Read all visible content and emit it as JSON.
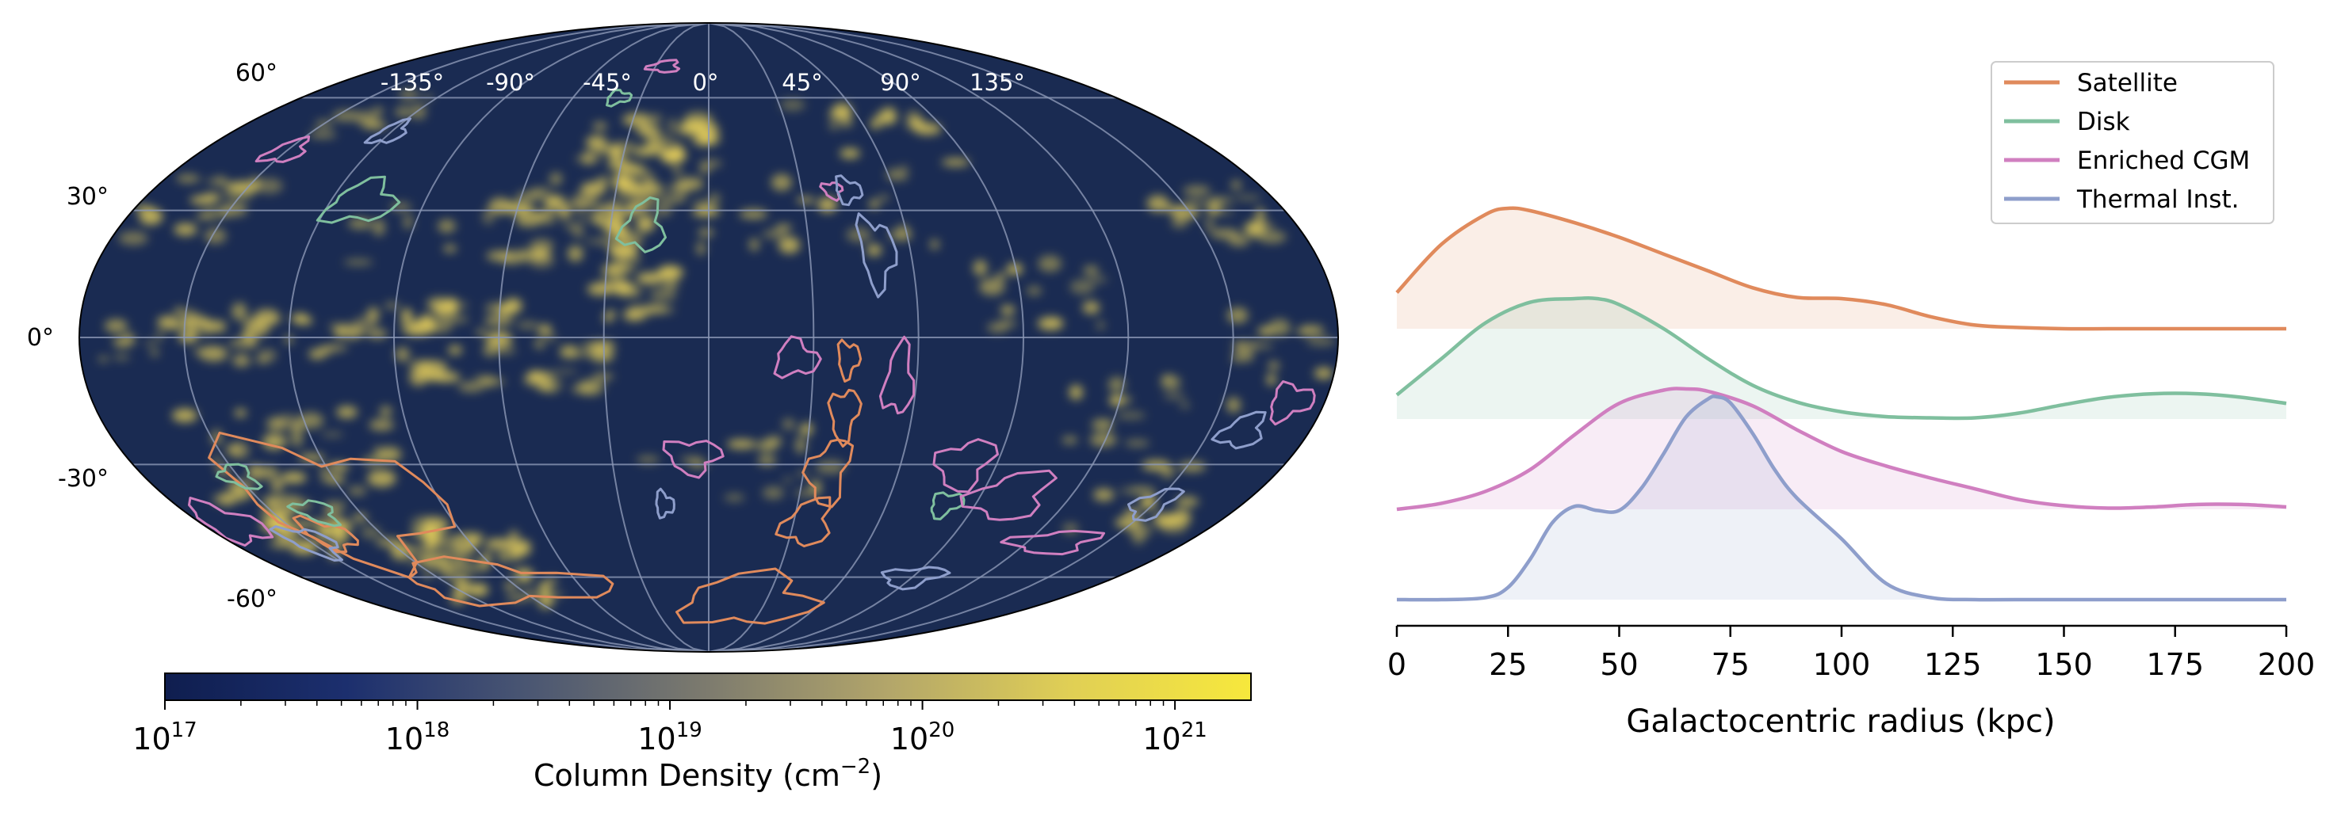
{
  "sky_map": {
    "lon_labels": [
      "-135°",
      "-90°",
      "-45°",
      "0°",
      "45°",
      "90°",
      "135°"
    ],
    "lat_labels": [
      "60°",
      "30°",
      "0°",
      "-30°",
      "-60°"
    ],
    "background_color": "#1a2b52",
    "grid_color": "#8c98b6",
    "emission_color": "#e6cf5a",
    "contour_colors": {
      "satellite": "#e08a5c",
      "disk": "#7fbf9e",
      "enriched_cgm": "#d07fc0",
      "thermal_inst": "#8e9ecb"
    }
  },
  "colorbar": {
    "label_text": "Column Density (cm",
    "label_exponent": "−2",
    "label_suffix": ")",
    "ticks": [
      {
        "base": "10",
        "exp": "17",
        "value": 1e+17
      },
      {
        "base": "10",
        "exp": "18",
        "value": 1e+18
      },
      {
        "base": "10",
        "exp": "19",
        "value": 1e+19
      },
      {
        "base": "10",
        "exp": "20",
        "value": 1e+20
      },
      {
        "base": "10",
        "exp": "21",
        "value": 1e+21
      }
    ],
    "range": [
      1e+17,
      2e+21
    ],
    "scale": "log",
    "colors": [
      "#0f1e4f",
      "#1c2f6e",
      "#4a5672",
      "#7d7b6e",
      "#b3a66a",
      "#e0cf55",
      "#f7e83c"
    ]
  },
  "chart_data": {
    "type": "area",
    "xlabel": "Galactocentric radius (kpc)",
    "ylabel": "",
    "xlim": [
      0,
      200
    ],
    "x_ticks": [
      0,
      25,
      50,
      75,
      100,
      125,
      150,
      175,
      200
    ],
    "grid": false,
    "legend_position": "top-right",
    "layout": "ridgeline",
    "series": [
      {
        "name": "Satellite",
        "color": "#e08a5c",
        "offset": 3,
        "scale": 0.95,
        "x": [
          0,
          10,
          20,
          25,
          30,
          40,
          50,
          60,
          70,
          80,
          90,
          100,
          110,
          120,
          130,
          140,
          150,
          160,
          170,
          180,
          190,
          200
        ],
        "y": [
          0.3,
          0.7,
          0.95,
          1.0,
          0.98,
          0.88,
          0.76,
          0.62,
          0.48,
          0.34,
          0.26,
          0.25,
          0.2,
          0.1,
          0.03,
          0.01,
          0,
          0,
          0,
          0,
          0,
          0
        ]
      },
      {
        "name": "Disk",
        "color": "#7fbf9e",
        "offset": 2,
        "scale": 0.95,
        "x": [
          0,
          10,
          20,
          30,
          40,
          45,
          50,
          60,
          70,
          80,
          90,
          100,
          110,
          120,
          130,
          140,
          150,
          160,
          170,
          180,
          190,
          200
        ],
        "y": [
          0.2,
          0.5,
          0.8,
          0.97,
          1.0,
          1.0,
          0.95,
          0.75,
          0.5,
          0.28,
          0.14,
          0.06,
          0.02,
          0.01,
          0.01,
          0.05,
          0.12,
          0.18,
          0.21,
          0.21,
          0.18,
          0.13
        ]
      },
      {
        "name": "Enriched CGM",
        "color": "#d07fc0",
        "offset": 1,
        "scale": 0.95,
        "x": [
          0,
          10,
          20,
          30,
          40,
          50,
          60,
          65,
          70,
          80,
          90,
          100,
          110,
          120,
          130,
          140,
          150,
          160,
          170,
          180,
          190,
          200
        ],
        "y": [
          0,
          0.05,
          0.15,
          0.33,
          0.62,
          0.88,
          0.99,
          1.0,
          0.98,
          0.86,
          0.66,
          0.48,
          0.36,
          0.26,
          0.17,
          0.08,
          0.03,
          0.01,
          0.02,
          0.04,
          0.04,
          0.02
        ]
      },
      {
        "name": "Thermal Inst.",
        "color": "#8e9ecb",
        "offset": 0,
        "scale": 1.6,
        "x": [
          0,
          10,
          20,
          25,
          30,
          35,
          40,
          45,
          50,
          55,
          60,
          65,
          70,
          72,
          75,
          80,
          85,
          90,
          100,
          110,
          120,
          130,
          140,
          200
        ],
        "y": [
          0,
          0,
          0.01,
          0.06,
          0.2,
          0.38,
          0.46,
          0.44,
          0.44,
          0.55,
          0.72,
          0.9,
          0.99,
          1.0,
          0.97,
          0.82,
          0.64,
          0.5,
          0.3,
          0.08,
          0.01,
          0,
          0,
          0
        ]
      }
    ]
  }
}
